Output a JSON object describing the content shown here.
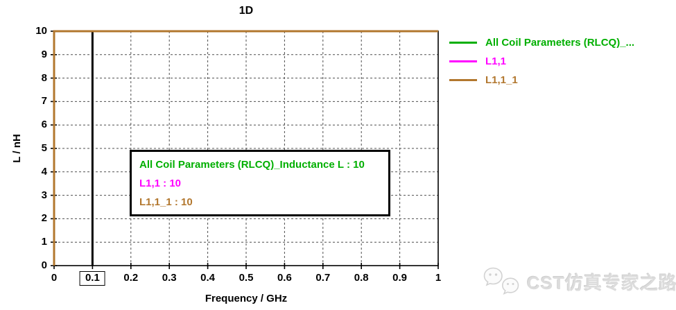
{
  "window": {
    "background": "#ffffff"
  },
  "colors": {
    "green": "#00AF00",
    "magenta": "#FF00FF",
    "brown": "#B2772E",
    "grid": "#4d4d4d",
    "axis": "#000000",
    "watermark_gray": "#dcdcdc"
  },
  "chart_data": {
    "type": "line",
    "title": "1D",
    "xlabel": "Frequency / GHz",
    "ylabel": "L / nH",
    "xlim": [
      0,
      1
    ],
    "ylim": [
      0,
      10
    ],
    "grid": true,
    "legend_position": "right-outside",
    "x_ticks": {
      "values": [
        0,
        0.1,
        0.2,
        0.3,
        0.4,
        0.5,
        0.6,
        0.7,
        0.8,
        0.9,
        1
      ],
      "labels": [
        "0",
        "0.1",
        "0.2",
        "0.3",
        "0.4",
        "0.5",
        "0.6",
        "0.7",
        "0.8",
        "0.9",
        "1"
      ]
    },
    "y_ticks": {
      "values": [
        0,
        1,
        2,
        3,
        4,
        5,
        6,
        7,
        8,
        9,
        10
      ],
      "labels": [
        "0",
        "1",
        "2",
        "3",
        "4",
        "5",
        "6",
        "7",
        "8",
        "9",
        "10"
      ]
    },
    "series": [
      {
        "name": "All Coil Parameters (RLCQ)_...",
        "color": "#00AF00",
        "points": [
          [
            0,
            10
          ],
          [
            1,
            10
          ]
        ]
      },
      {
        "name": "L1,1",
        "color": "#FF00FF",
        "points": [
          [
            0,
            10
          ],
          [
            1,
            10
          ]
        ]
      },
      {
        "name": "L1,1_1",
        "color": "#B2772E",
        "points": [
          [
            0,
            0
          ],
          [
            0,
            10
          ],
          [
            1,
            10
          ]
        ]
      }
    ],
    "marker": {
      "x": 0.1,
      "label": "0.1"
    }
  },
  "legend": {
    "items": [
      {
        "label": "All Coil Parameters (RLCQ)_...",
        "color": "#00AF00"
      },
      {
        "label": "L1,1",
        "color": "#FF00FF"
      },
      {
        "label": "L1,1_1",
        "color": "#B2772E"
      }
    ]
  },
  "info_box": {
    "lines": [
      {
        "text": "All Coil Parameters (RLCQ)_Inductance L : 10",
        "color": "#00AF00"
      },
      {
        "text": "L1,1 : 10",
        "color": "#FF00FF"
      },
      {
        "text": "L1,1_1 : 10",
        "color": "#B2772E"
      }
    ]
  },
  "watermark": {
    "text": "CST仿真专家之路",
    "icon": "wechat-icon"
  }
}
